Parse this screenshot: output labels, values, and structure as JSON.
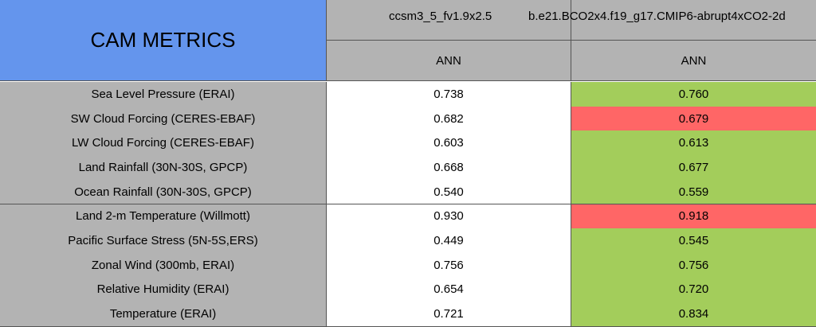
{
  "header": {
    "title": "CAM METRICS",
    "columns": [
      {
        "name": "ccsm3_5_fv1.9x2.5",
        "period": "ANN"
      },
      {
        "name": "b.e21.BCO2x4.f19_g17.CMIP6-abrupt4xCO2-2d",
        "period": "ANN"
      }
    ]
  },
  "colors": {
    "title": "#6495ed",
    "header": "#b3b3b3",
    "label": "#b3b3b3",
    "base": "#ffffff",
    "better": "#a3cd5b",
    "worse": "#ff6666"
  },
  "table": {
    "rows": [
      [
        "Sea Level Pressure (ERAI)",
        "0.738",
        "0.760",
        "better"
      ],
      [
        "SW Cloud Forcing (CERES-EBAF)",
        "0.682",
        "0.679",
        "worse"
      ],
      [
        "LW Cloud Forcing (CERES-EBAF)",
        "0.603",
        "0.613",
        "better"
      ],
      [
        "Land Rainfall (30N-30S, GPCP)",
        "0.668",
        "0.677",
        "better"
      ],
      [
        "Ocean Rainfall (30N-30S, GPCP)",
        "0.540",
        "0.559",
        "better"
      ],
      [
        "Land 2-m Temperature (Willmott)",
        "0.930",
        "0.918",
        "worse"
      ],
      [
        "Pacific Surface Stress (5N-5S,ERS)",
        "0.449",
        "0.545",
        "better"
      ],
      [
        "Zonal Wind (300mb, ERAI)",
        "0.756",
        "0.756",
        "better"
      ],
      [
        "Relative Humidity (ERAI)",
        "0.654",
        "0.720",
        "better"
      ],
      [
        "Temperature (ERAI)",
        "0.721",
        "0.834",
        "better"
      ]
    ]
  }
}
